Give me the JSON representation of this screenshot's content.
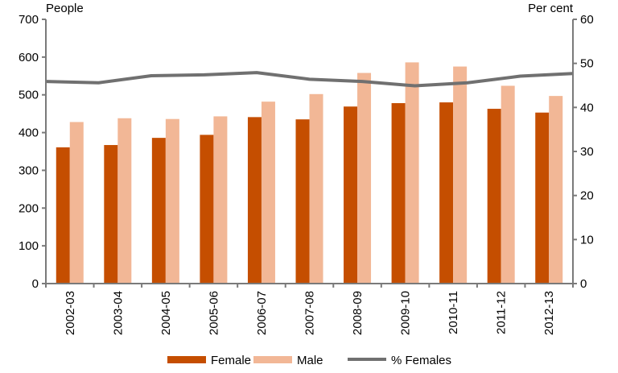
{
  "chart_data": {
    "type": "bar",
    "categories": [
      "2002-03",
      "2003-04",
      "2004-05",
      "2005-06",
      "2006-07",
      "2007-08",
      "2008-09",
      "2009-10",
      "2010-11",
      "2011-12",
      "2012-13"
    ],
    "series": [
      {
        "name": "Female",
        "type": "bar",
        "axis": "left",
        "color": "#C54E00",
        "values": [
          361,
          367,
          386,
          394,
          441,
          435,
          469,
          478,
          480,
          463,
          453
        ]
      },
      {
        "name": "Male",
        "type": "bar",
        "axis": "left",
        "color": "#F2B796",
        "values": [
          428,
          438,
          436,
          443,
          482,
          502,
          558,
          586,
          575,
          524,
          497
        ]
      },
      {
        "name": "% Females",
        "type": "line",
        "axis": "right",
        "color": "#707070",
        "values": [
          45.9,
          45.6,
          47.2,
          47.4,
          47.9,
          46.4,
          45.9,
          44.9,
          45.6,
          47.1,
          47.7
        ]
      }
    ],
    "ylabel": "People",
    "ylabel_right": "Per cent",
    "ylim": [
      0,
      700
    ],
    "ylim_right": [
      0,
      60
    ],
    "yticks": [
      "0",
      "100",
      "200",
      "300",
      "400",
      "500",
      "600",
      "700"
    ],
    "yticks_right": [
      "0",
      "10",
      "20",
      "30",
      "40",
      "50",
      "60"
    ],
    "grid": false,
    "legend": "bottom"
  }
}
